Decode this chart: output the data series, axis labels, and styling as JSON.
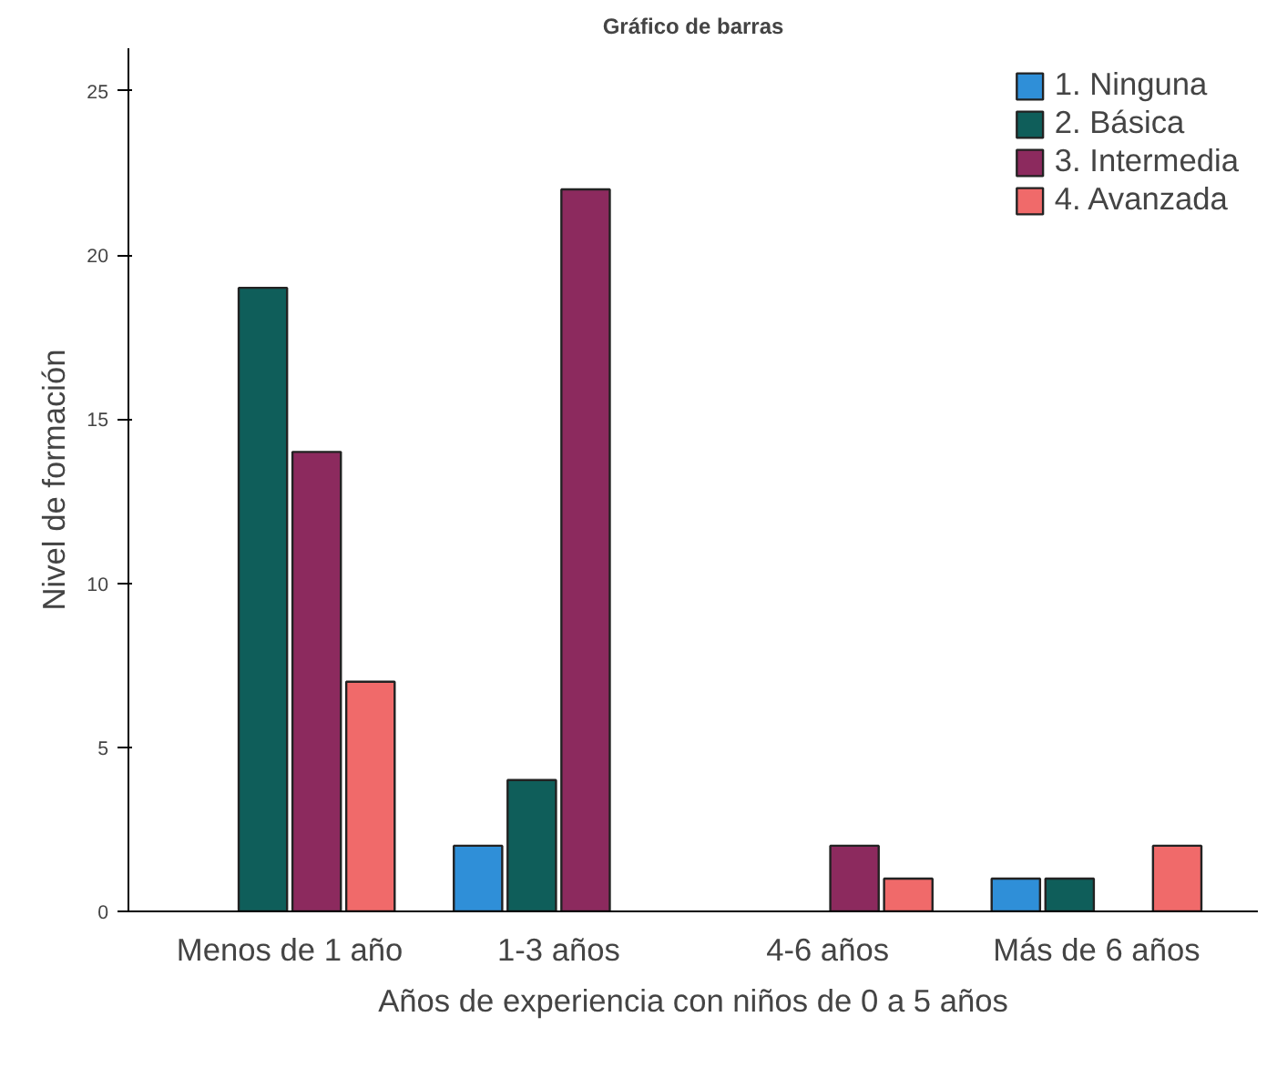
{
  "chart_data": {
    "type": "bar",
    "title": "Gráfico de barras",
    "xlabel": "Años de experiencia con niños de 0 a 5 años",
    "ylabel": "Nivel de formación",
    "categories": [
      "Menos de 1 año",
      "1-3 años",
      "4-6 años",
      "Más de 6 años"
    ],
    "series": [
      {
        "name": "1. Ninguna",
        "color": "#2f8fd8",
        "values": [
          null,
          2,
          null,
          1
        ]
      },
      {
        "name": "2. Básica",
        "color": "#0f5e5a",
        "values": [
          19,
          4,
          null,
          1
        ]
      },
      {
        "name": "3. Intermedia",
        "color": "#8c2a5e",
        "values": [
          14,
          22,
          2,
          null
        ]
      },
      {
        "name": "4. Avanzada",
        "color": "#f06a6a",
        "values": [
          7,
          null,
          1,
          2
        ]
      }
    ],
    "ylim": [
      0,
      26.3
    ],
    "yticks": [
      0,
      5,
      10,
      15,
      20,
      25
    ],
    "grid": false,
    "legend": "top right"
  }
}
